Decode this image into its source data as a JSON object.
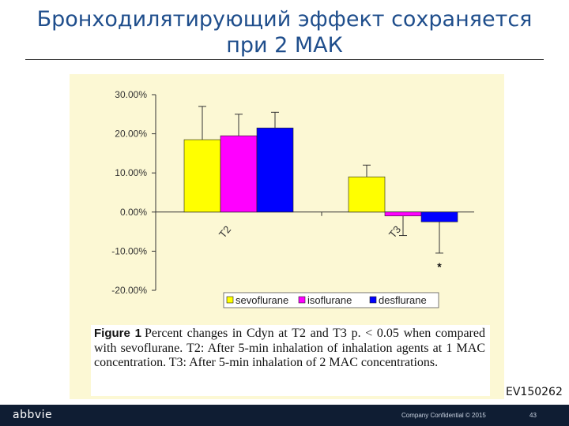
{
  "slide": {
    "title_line1": "Бронходилятирующий эффект сохраняется",
    "title_line2": "при 2 МАК",
    "code": "EV150262"
  },
  "chart_data": {
    "type": "bar",
    "categories": [
      "T2",
      "T3"
    ],
    "series": [
      {
        "name": "sevoflurane",
        "color": "#ffff00",
        "values": [
          18.5,
          9.0
        ],
        "error": [
          8.5,
          3.0
        ]
      },
      {
        "name": "isoflurane",
        "color": "#ff00ff",
        "values": [
          19.5,
          -1.0
        ],
        "error": [
          5.5,
          5.0
        ]
      },
      {
        "name": "desflurane",
        "color": "#0000ff",
        "values": [
          21.5,
          -2.5
        ],
        "error": [
          4.0,
          8.0
        ]
      }
    ],
    "significance": [
      {
        "category": "T3",
        "series": "desflurane",
        "label": "*"
      }
    ],
    "ylim": [
      -20,
      30
    ],
    "yticks": [
      "30.00%",
      "20.00%",
      "10.00%",
      "0.00%",
      "-10.00%",
      "-20.00%"
    ],
    "ytick_values": [
      30,
      20,
      10,
      0,
      -10,
      -20
    ],
    "legend": "bottom",
    "grid": false,
    "caption_label": "Figure 1",
    "caption_text": "Percent changes in Cdyn at T2 and T3 p. < 0.05 when compared with sevoflurane. T2: After 5-min inhalation of inhalation agents at 1 MAC concentration. T3: After 5-min inhalation of 2 MAC concentrations."
  },
  "footer": {
    "logo": "abbvie",
    "confidential": "Company Confidential © 2015",
    "page": "43"
  }
}
